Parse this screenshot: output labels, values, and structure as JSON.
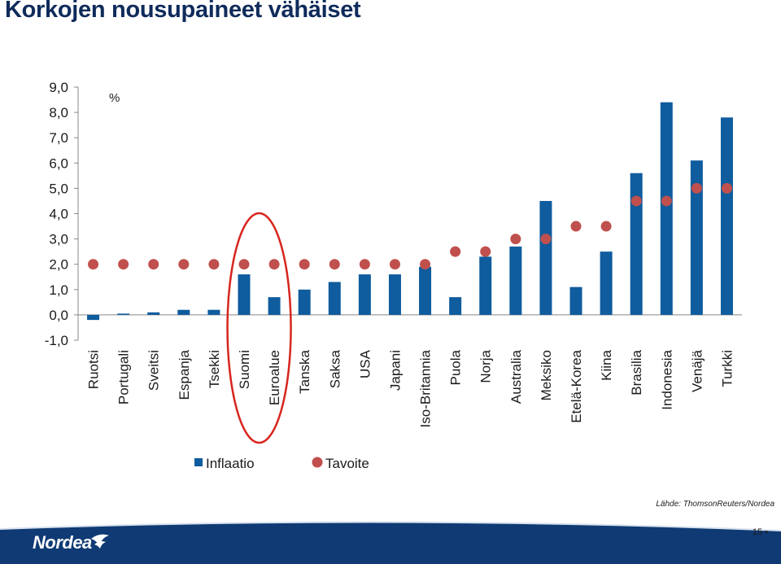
{
  "page": {
    "title": "Korkojen nousupaineet vähäiset",
    "source": "Lähde: ThomsonReuters/Nordea",
    "brand": "Nordea",
    "page_number": "15"
  },
  "colors": {
    "bar": "#0f5c9e",
    "dot": "#c0504d",
    "ellipse": "#d7261e",
    "title": "#0f2b5b",
    "footer": "#0f3a74"
  },
  "chart_data": {
    "type": "bar",
    "unit_label": "%",
    "categories": [
      "Ruotsi",
      "Portugali",
      "Sveitsi",
      "Espanja",
      "Tsekki",
      "Suomi",
      "Euroalue",
      "Tanska",
      "Saksa",
      "USA",
      "Japani",
      "Iso-Britannia",
      "Puola",
      "Norja",
      "Australia",
      "Meksiko",
      "Etelä-Korea",
      "Kiina",
      "Brasilia",
      "Indonesia",
      "Venäjä",
      "Turkki"
    ],
    "series": [
      {
        "name": "Inflaatio",
        "type": "bar",
        "values": [
          -0.2,
          0.05,
          0.1,
          0.2,
          0.2,
          1.6,
          0.7,
          1.0,
          1.3,
          1.6,
          1.6,
          1.9,
          0.7,
          2.3,
          2.7,
          4.5,
          1.1,
          2.5,
          5.6,
          8.4,
          6.1,
          7.8
        ]
      },
      {
        "name": "Tavoite",
        "type": "scatter",
        "values": [
          2.0,
          2.0,
          2.0,
          2.0,
          2.0,
          2.0,
          2.0,
          2.0,
          2.0,
          2.0,
          2.0,
          2.0,
          2.5,
          2.5,
          3.0,
          3.0,
          3.5,
          3.5,
          4.5,
          4.5,
          5.0,
          5.0
        ]
      }
    ],
    "ylim": [
      -1.0,
      9.0
    ],
    "yticks": [
      9.0,
      8.0,
      7.0,
      6.0,
      5.0,
      4.0,
      3.0,
      2.0,
      1.0,
      0.0,
      -1.0
    ],
    "ytick_labels": [
      "9,0",
      "8,0",
      "7,0",
      "6,0",
      "5,0",
      "4,0",
      "3,0",
      "2,0",
      "1,0",
      "0,0",
      "-1,0"
    ],
    "highlight": {
      "categories": [
        "Suomi",
        "Euroalue"
      ],
      "shape": "ellipse"
    },
    "legend_position": "bottom-left",
    "grid": false
  }
}
